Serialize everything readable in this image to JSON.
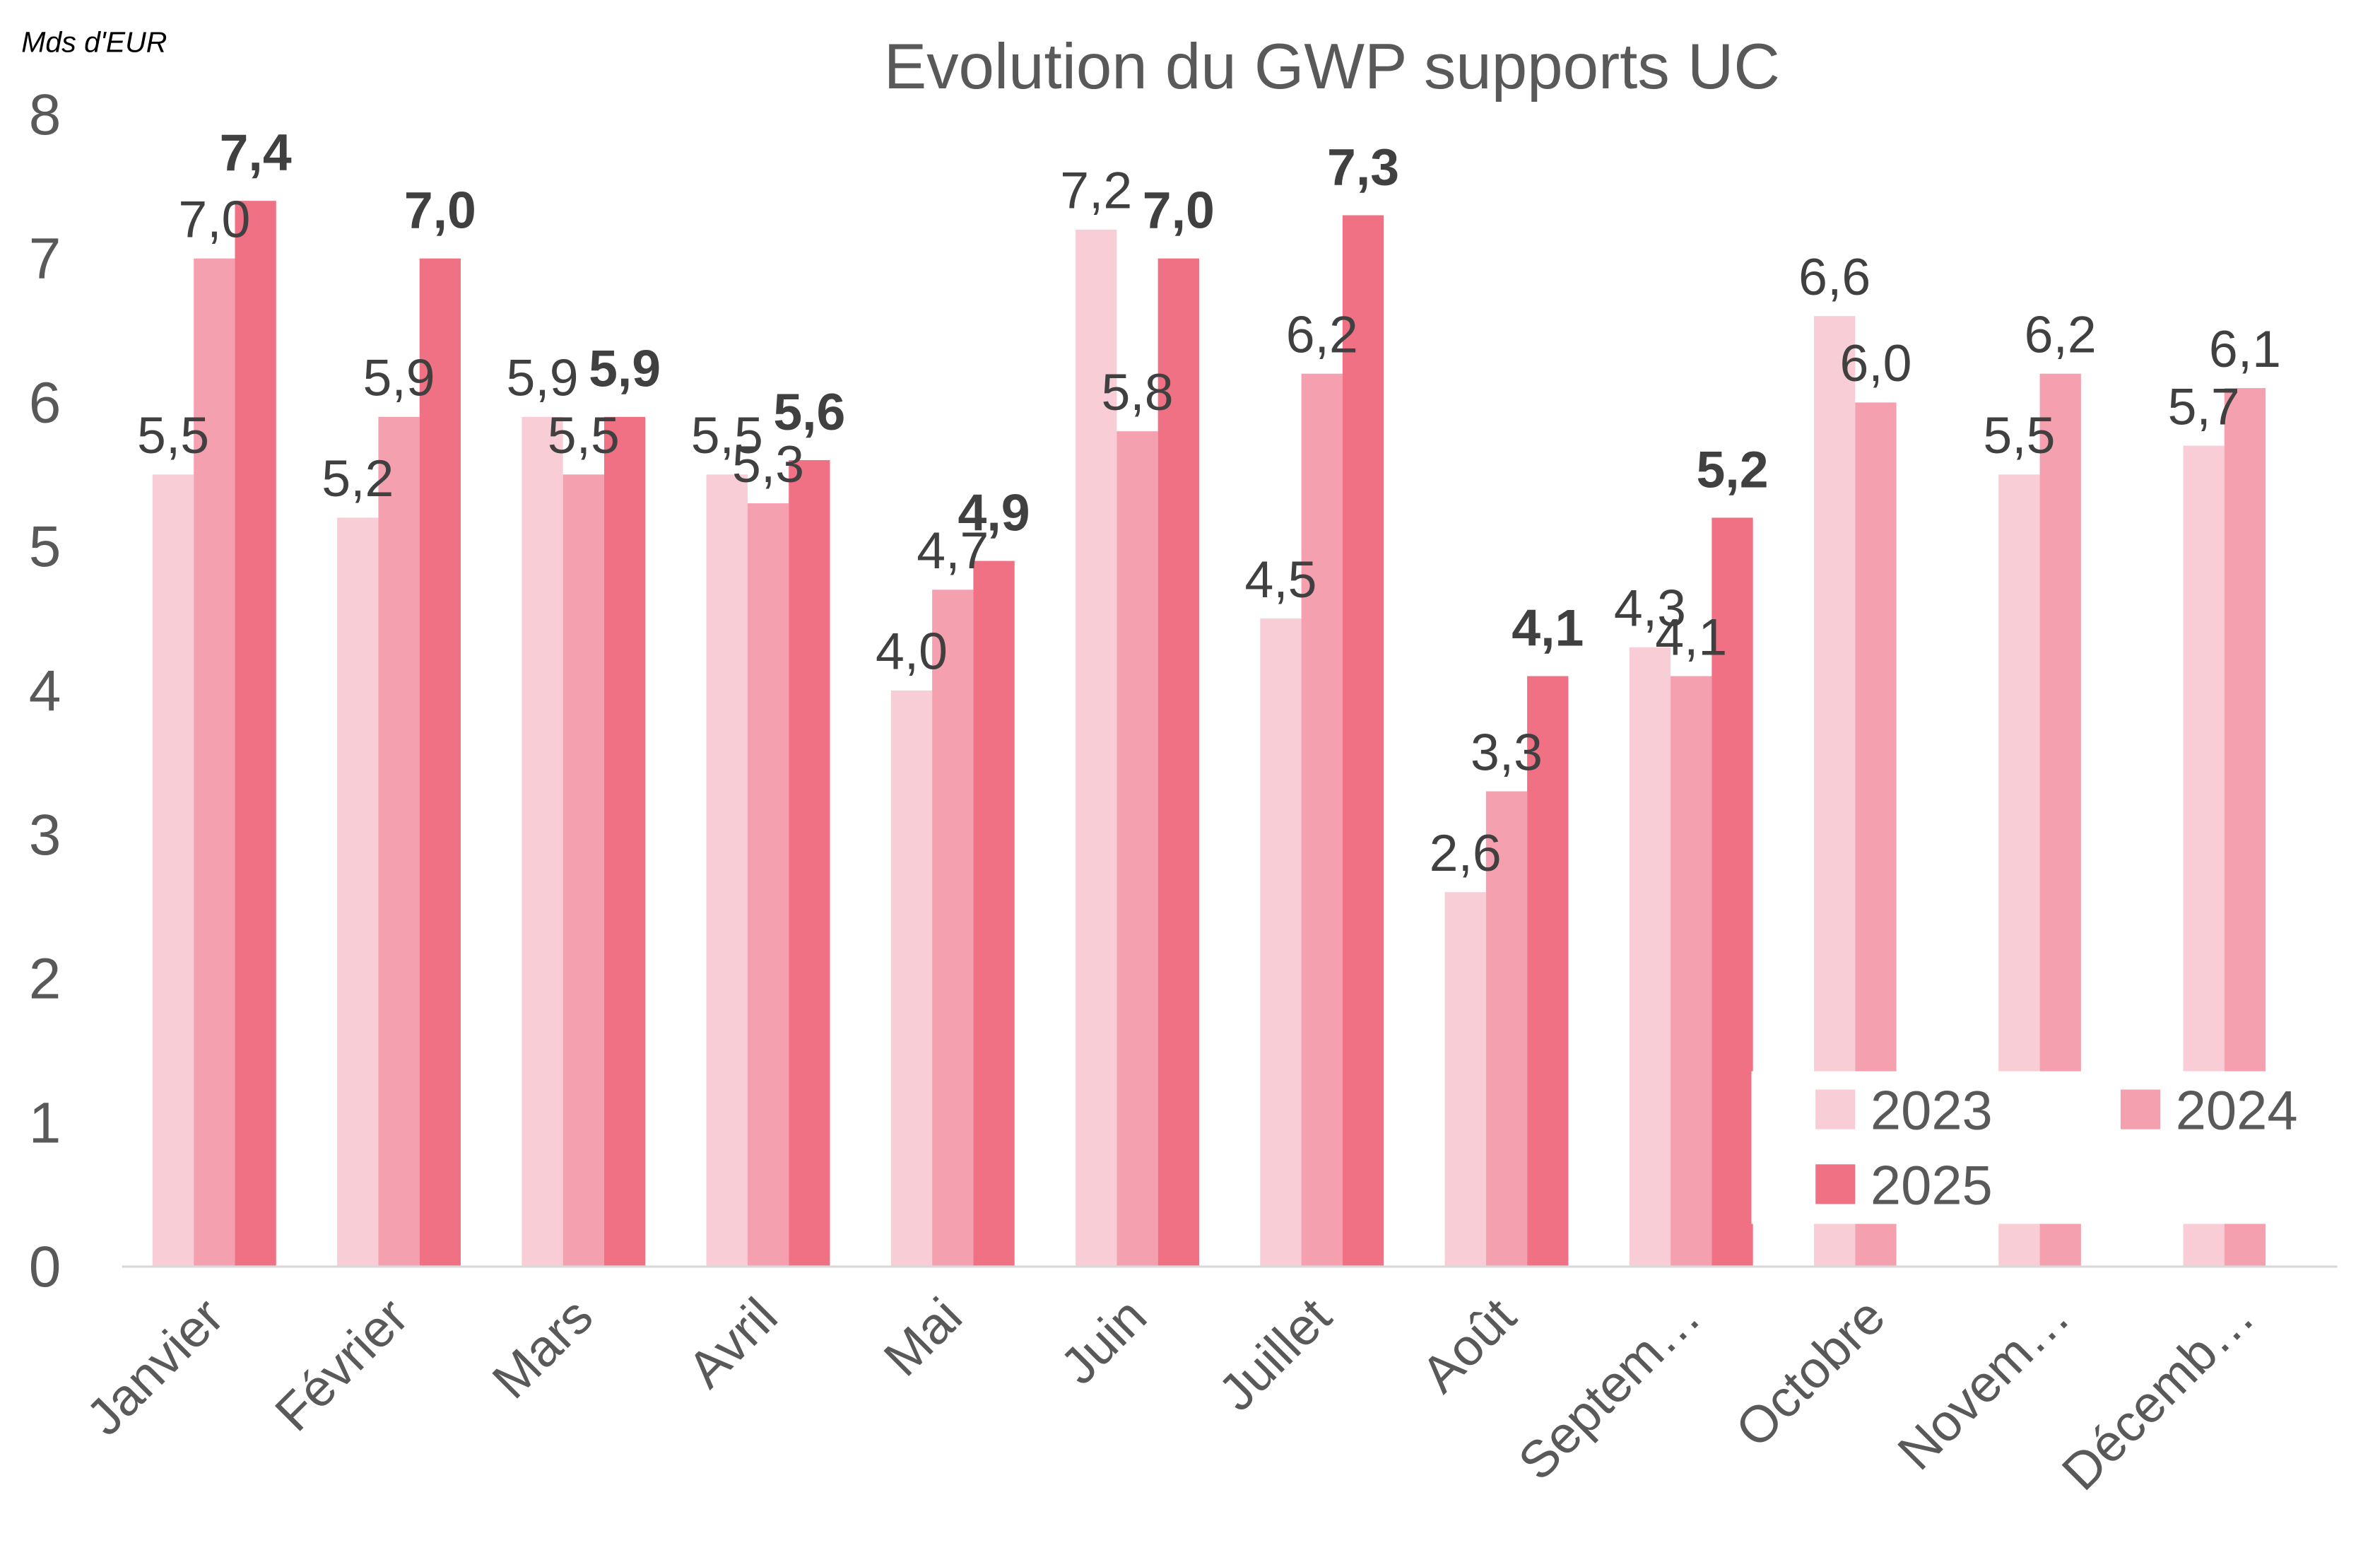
{
  "chart_data": {
    "type": "bar",
    "title": "Evolution du GWP supports UC",
    "y_label": "Mds d'EUR",
    "categories": [
      "Janvier",
      "Février",
      "Mars",
      "Avril",
      "Mai",
      "Juin",
      "Juillet",
      "Août",
      "Septem…",
      "Octobre",
      "Novem…",
      "Décemb…"
    ],
    "series": [
      {
        "name": "2023",
        "color": "#f9cdd5",
        "values": [
          5.5,
          5.2,
          5.9,
          5.5,
          4.0,
          7.2,
          4.5,
          2.6,
          4.3,
          6.6,
          5.5,
          5.7
        ],
        "value_labels": [
          "5,5",
          "5,2",
          "5,9",
          "5,5",
          "4,0",
          "7,2",
          "4,5",
          "2,6",
          "4,3",
          "6,6",
          "5,5",
          "5,7"
        ]
      },
      {
        "name": "2024",
        "color": "#f5a0ae",
        "values": [
          7.0,
          5.9,
          5.5,
          5.3,
          4.7,
          5.8,
          6.2,
          3.3,
          4.1,
          6.0,
          6.2,
          6.1
        ],
        "value_labels": [
          "7,0",
          "5,9",
          "5,5",
          "5,3",
          "4,7",
          "5,8",
          "6,2",
          "3,3",
          "4,1",
          "6,0",
          "6,2",
          "6,1"
        ]
      },
      {
        "name": "2025",
        "color": "#f07084",
        "values": [
          7.4,
          7.0,
          5.9,
          5.6,
          4.9,
          7.0,
          7.3,
          4.1,
          5.2,
          null,
          null,
          null
        ],
        "value_labels": [
          "7,4",
          "7,0",
          "5,9",
          "5,6",
          "4,9",
          "7,0",
          "7,3",
          "4,1",
          "5,2",
          null,
          null,
          null
        ]
      }
    ],
    "ylim": [
      0,
      8
    ],
    "yticks": [
      0,
      1,
      2,
      3,
      4,
      5,
      6,
      7,
      8
    ],
    "grid": false,
    "legend": "lower right"
  }
}
